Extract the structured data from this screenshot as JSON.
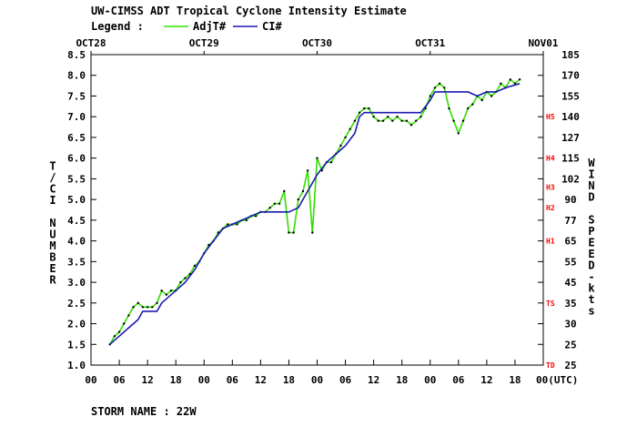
{
  "title": "UW-CIMSS ADT Tropical Cyclone Intensity Estimate",
  "legend": {
    "label": "Legend :",
    "items": [
      {
        "name": "AdjT#",
        "color": "#33dd00"
      },
      {
        "name": "CI#",
        "color": "#1a1ab0"
      }
    ]
  },
  "storm_name": "STORM NAME : 22W",
  "chart_data": {
    "type": "line",
    "x_unit": "hours since OCT28 00UTC",
    "xlim": [
      0,
      96
    ],
    "ylim": [
      1.0,
      8.5
    ],
    "ylabel": "T/CI NUMBER",
    "y2label": "WIND SPEED-kts",
    "grid": false,
    "legend_position": "top-left",
    "date_labels": [
      {
        "hour": 0,
        "text": "OCT28"
      },
      {
        "hour": 24,
        "text": "OCT29"
      },
      {
        "hour": 48,
        "text": "OCT30"
      },
      {
        "hour": 72,
        "text": "OCT31"
      },
      {
        "hour": 96,
        "text": "NOV01"
      }
    ],
    "x_ticks": [
      {
        "hour": 0,
        "label": "00"
      },
      {
        "hour": 6,
        "label": "06"
      },
      {
        "hour": 12,
        "label": "12"
      },
      {
        "hour": 18,
        "label": "18"
      },
      {
        "hour": 24,
        "label": "00"
      },
      {
        "hour": 30,
        "label": "06"
      },
      {
        "hour": 36,
        "label": "12"
      },
      {
        "hour": 42,
        "label": "18"
      },
      {
        "hour": 48,
        "label": "00"
      },
      {
        "hour": 54,
        "label": "06"
      },
      {
        "hour": 60,
        "label": "12"
      },
      {
        "hour": 66,
        "label": "18"
      },
      {
        "hour": 72,
        "label": "00"
      },
      {
        "hour": 78,
        "label": "06"
      },
      {
        "hour": 84,
        "label": "12"
      },
      {
        "hour": 90,
        "label": "18"
      },
      {
        "hour": 96,
        "label": "00(UTC)"
      }
    ],
    "y_ticks": [
      "1.0",
      "1.5",
      "2.0",
      "2.5",
      "3.0",
      "3.5",
      "4.0",
      "4.5",
      "5.0",
      "5.5",
      "6.0",
      "6.5",
      "7.0",
      "7.5",
      "8.0",
      "8.5"
    ],
    "wind_ticks": [
      {
        "t": 1.0,
        "label": "25"
      },
      {
        "t": 1.5,
        "label": "25"
      },
      {
        "t": 2.0,
        "label": "30"
      },
      {
        "t": 2.5,
        "label": "35"
      },
      {
        "t": 3.0,
        "label": "45"
      },
      {
        "t": 3.5,
        "label": "55"
      },
      {
        "t": 4.0,
        "label": "65"
      },
      {
        "t": 4.5,
        "label": "77"
      },
      {
        "t": 5.0,
        "label": "90"
      },
      {
        "t": 5.5,
        "label": "102"
      },
      {
        "t": 6.0,
        "label": "115"
      },
      {
        "t": 6.5,
        "label": "127"
      },
      {
        "t": 7.0,
        "label": "140"
      },
      {
        "t": 7.5,
        "label": "155"
      },
      {
        "t": 8.0,
        "label": "170"
      },
      {
        "t": 8.5,
        "label": "185"
      }
    ],
    "category_marks": [
      {
        "t": 1.0,
        "label": "TD"
      },
      {
        "t": 2.5,
        "label": "TS"
      },
      {
        "t": 4.0,
        "label": "H1"
      },
      {
        "t": 4.8,
        "label": "H2"
      },
      {
        "t": 5.3,
        "label": "H3"
      },
      {
        "t": 6.0,
        "label": "H4"
      },
      {
        "t": 7.0,
        "label": "H5"
      }
    ],
    "series": [
      {
        "name": "AdjT#",
        "color": "#33dd00",
        "points": [
          [
            4,
            1.5
          ],
          [
            5,
            1.7
          ],
          [
            6,
            1.8
          ],
          [
            7,
            2.0
          ],
          [
            8,
            2.2
          ],
          [
            9,
            2.4
          ],
          [
            10,
            2.5
          ],
          [
            11,
            2.4
          ],
          [
            12,
            2.4
          ],
          [
            13,
            2.4
          ],
          [
            14,
            2.5
          ],
          [
            15,
            2.8
          ],
          [
            16,
            2.7
          ],
          [
            17,
            2.8
          ],
          [
            18,
            2.8
          ],
          [
            19,
            3.0
          ],
          [
            20,
            3.1
          ],
          [
            21,
            3.2
          ],
          [
            22,
            3.4
          ],
          [
            23,
            3.5
          ],
          [
            24,
            3.7
          ],
          [
            25,
            3.9
          ],
          [
            26,
            4.0
          ],
          [
            27,
            4.2
          ],
          [
            28,
            4.3
          ],
          [
            29,
            4.4
          ],
          [
            30,
            4.4
          ],
          [
            31,
            4.4
          ],
          [
            32,
            4.5
          ],
          [
            33,
            4.5
          ],
          [
            34,
            4.6
          ],
          [
            35,
            4.6
          ],
          [
            36,
            4.7
          ],
          [
            37,
            4.7
          ],
          [
            38,
            4.8
          ],
          [
            39,
            4.9
          ],
          [
            40,
            4.9
          ],
          [
            41,
            5.2
          ],
          [
            42,
            4.2
          ],
          [
            43,
            4.2
          ],
          [
            44,
            5.0
          ],
          [
            45,
            5.2
          ],
          [
            46,
            5.7
          ],
          [
            47,
            4.2
          ],
          [
            48,
            6.0
          ],
          [
            49,
            5.7
          ],
          [
            50,
            5.9
          ],
          [
            51,
            5.9
          ],
          [
            52,
            6.1
          ],
          [
            53,
            6.3
          ],
          [
            54,
            6.5
          ],
          [
            55,
            6.7
          ],
          [
            56,
            6.9
          ],
          [
            57,
            7.1
          ],
          [
            58,
            7.2
          ],
          [
            59,
            7.2
          ],
          [
            60,
            7.0
          ],
          [
            61,
            6.9
          ],
          [
            62,
            6.9
          ],
          [
            63,
            7.0
          ],
          [
            64,
            6.9
          ],
          [
            65,
            7.0
          ],
          [
            66,
            6.9
          ],
          [
            67,
            6.9
          ],
          [
            68,
            6.8
          ],
          [
            69,
            6.9
          ],
          [
            70,
            7.0
          ],
          [
            71,
            7.2
          ],
          [
            72,
            7.5
          ],
          [
            73,
            7.7
          ],
          [
            74,
            7.8
          ],
          [
            75,
            7.7
          ],
          [
            76,
            7.2
          ],
          [
            77,
            6.9
          ],
          [
            78,
            6.6
          ],
          [
            79,
            6.9
          ],
          [
            80,
            7.2
          ],
          [
            81,
            7.3
          ],
          [
            82,
            7.5
          ],
          [
            83,
            7.4
          ],
          [
            84,
            7.6
          ],
          [
            85,
            7.5
          ],
          [
            86,
            7.6
          ],
          [
            87,
            7.8
          ],
          [
            88,
            7.7
          ],
          [
            89,
            7.9
          ],
          [
            90,
            7.8
          ],
          [
            91,
            7.9
          ]
        ]
      },
      {
        "name": "CI#",
        "color": "#1a1ab0",
        "points": [
          [
            4,
            1.5
          ],
          [
            5,
            1.6
          ],
          [
            6,
            1.7
          ],
          [
            8,
            1.9
          ],
          [
            10,
            2.1
          ],
          [
            11,
            2.3
          ],
          [
            12,
            2.3
          ],
          [
            13,
            2.3
          ],
          [
            14,
            2.3
          ],
          [
            15,
            2.5
          ],
          [
            16,
            2.6
          ],
          [
            17,
            2.7
          ],
          [
            18,
            2.8
          ],
          [
            20,
            3.0
          ],
          [
            22,
            3.3
          ],
          [
            24,
            3.7
          ],
          [
            26,
            4.0
          ],
          [
            28,
            4.3
          ],
          [
            30,
            4.4
          ],
          [
            34,
            4.6
          ],
          [
            36,
            4.7
          ],
          [
            42,
            4.7
          ],
          [
            44,
            4.8
          ],
          [
            46,
            5.2
          ],
          [
            48,
            5.6
          ],
          [
            50,
            5.9
          ],
          [
            52,
            6.1
          ],
          [
            54,
            6.3
          ],
          [
            56,
            6.6
          ],
          [
            57,
            7.0
          ],
          [
            58,
            7.1
          ],
          [
            70,
            7.1
          ],
          [
            72,
            7.4
          ],
          [
            73,
            7.6
          ],
          [
            80,
            7.6
          ],
          [
            82,
            7.5
          ],
          [
            84,
            7.6
          ],
          [
            86,
            7.6
          ],
          [
            88,
            7.7
          ],
          [
            91,
            7.8
          ]
        ]
      }
    ]
  }
}
